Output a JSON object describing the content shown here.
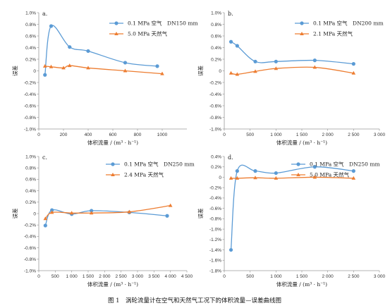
{
  "caption": "图 1　涡轮流量计在空气和天然气工况下的体积流量—误差曲线图",
  "colors": {
    "air": "#5b9bd5",
    "gas": "#ed7d31",
    "axis": "#999999",
    "text": "#222222"
  },
  "chart_data": [
    {
      "panel": "a.",
      "type": "line",
      "xlabel": "体积流量 / (m³ · h⁻¹)",
      "ylabel": "误差",
      "xlim": [
        0,
        1200
      ],
      "xticks": [
        0,
        200,
        400,
        600,
        800,
        1000
      ],
      "ylim": [
        -1.0,
        1.0
      ],
      "yticks": [
        -1.0,
        -0.8,
        -0.6,
        -0.4,
        -0.2,
        0,
        0.2,
        0.4,
        0.6,
        0.8,
        1.0
      ],
      "ytick_labels": [
        "-1.0%",
        "-0.8%",
        "-0.6%",
        "-0.4%",
        "-0.2%",
        "0",
        "0.2%",
        "0.4%",
        "0.6%",
        "0.8%",
        "1.0%"
      ],
      "legend_position": "top-right",
      "series": [
        {
          "name": "0.1 MPa 空气　DN150 mm",
          "marker": "circle",
          "color": "air",
          "x": [
            50,
            100,
            250,
            400,
            700,
            960
          ],
          "y": [
            -0.07,
            0.77,
            0.41,
            0.34,
            0.14,
            0.08
          ]
        },
        {
          "name": "5.0 MPa 天然气",
          "marker": "triangle",
          "color": "gas",
          "x": [
            50,
            100,
            200,
            250,
            400,
            700,
            1000
          ],
          "y": [
            0.08,
            0.07,
            0.05,
            0.09,
            0.05,
            0.0,
            -0.05
          ]
        }
      ]
    },
    {
      "panel": "b.",
      "type": "line",
      "xlabel": "体积流量 / (m³ · h⁻¹)",
      "ylabel": "误差",
      "xlim": [
        0,
        3000
      ],
      "xticks": [
        0,
        500,
        1000,
        1500,
        2000,
        2500,
        3000
      ],
      "xtick_labels": [
        "0",
        "500",
        "1 000",
        "1 500",
        "2 000",
        "2 500",
        "3 000"
      ],
      "ylim": [
        -1.0,
        1.0
      ],
      "yticks": [
        -1.0,
        -0.8,
        -0.6,
        -0.4,
        -0.2,
        0,
        0.2,
        0.4,
        0.6,
        0.8,
        1.0
      ],
      "ytick_labels": [
        "-1.0%",
        "-0.8%",
        "-0.6%",
        "-0.4%",
        "-0.2%",
        "0",
        "0.2%",
        "0.4%",
        "0.6%",
        "0.8%",
        "1.0%"
      ],
      "legend_position": "top-right",
      "series": [
        {
          "name": "0.1 MPa 空气　DN200 mm",
          "marker": "circle",
          "color": "air",
          "x": [
            130,
            250,
            600,
            1000,
            1750,
            2500
          ],
          "y": [
            0.5,
            0.43,
            0.16,
            0.16,
            0.18,
            0.12
          ]
        },
        {
          "name": "2.1 MPa 天然气",
          "marker": "triangle",
          "color": "gas",
          "x": [
            130,
            250,
            600,
            1000,
            1750,
            2500
          ],
          "y": [
            -0.04,
            -0.06,
            -0.01,
            0.04,
            0.06,
            -0.04
          ]
        }
      ]
    },
    {
      "panel": "c.",
      "type": "line",
      "xlabel": "体积流量 / (m³ · h⁻¹)",
      "ylabel": "误差",
      "xlim": [
        0,
        4500
      ],
      "xticks": [
        0,
        500,
        1000,
        1500,
        2000,
        2500,
        3000,
        3500,
        4000,
        4500
      ],
      "xtick_labels": [
        "0",
        "500",
        "1 000",
        "1 500",
        "2 000",
        "2 500",
        "3 000",
        "3 500",
        "4 000",
        "4 500"
      ],
      "ylim": [
        -1.0,
        1.0
      ],
      "yticks": [
        -1.0,
        -0.8,
        -0.6,
        -0.4,
        -0.2,
        0,
        0.2,
        0.4,
        0.6,
        0.8,
        1.0
      ],
      "ytick_labels": [
        "-1.0%",
        "-0.8%",
        "-0.6%",
        "-0.4%",
        "-0.2%",
        "0",
        "0.2%",
        "0.4%",
        "0.6%",
        "0.8%",
        "1.0%"
      ],
      "legend_position": "top-left",
      "series": [
        {
          "name": "0.1 MPa 空气　DN250 mm",
          "marker": "circle",
          "color": "air",
          "x": [
            200,
            400,
            1000,
            1600,
            2750,
            3900
          ],
          "y": [
            -0.21,
            0.06,
            -0.01,
            0.05,
            0.02,
            -0.04
          ]
        },
        {
          "name": "2.4 MPa 天然气",
          "marker": "triangle",
          "color": "gas",
          "x": [
            200,
            400,
            1000,
            1600,
            2750,
            4000
          ],
          "y": [
            -0.09,
            0.02,
            0.01,
            0.01,
            0.03,
            0.14
          ]
        }
      ]
    },
    {
      "panel": "d.",
      "type": "line",
      "xlabel": "体积流量 / (m³ · h⁻¹)",
      "ylabel": "误差",
      "xlim": [
        0,
        3000
      ],
      "xticks": [
        0,
        500,
        1000,
        1500,
        2000,
        2500,
        3000
      ],
      "xtick_labels": [
        "0",
        "500",
        "1 000",
        "1 500",
        "2 000",
        "2 500",
        "3 000"
      ],
      "ylim": [
        -1.8,
        0.4
      ],
      "yticks": [
        -1.8,
        -1.6,
        -1.4,
        -1.2,
        -1.0,
        -0.8,
        -0.6,
        -0.4,
        -0.2,
        0,
        0.2,
        0.4
      ],
      "ytick_labels": [
        "-1.8%",
        "-1.6%",
        "-1.4%",
        "-1.2%",
        "-1.0%",
        "-0.8%",
        "-0.6%",
        "-0.4%",
        "-0.2%",
        "0",
        "0.2%",
        "0.4%"
      ],
      "legend_position": "top-left",
      "series": [
        {
          "name": "0.1 MPa 空气　DN250 mm",
          "marker": "circle",
          "color": "air",
          "x": [
            130,
            250,
            600,
            1000,
            1750,
            2500
          ],
          "y": [
            -1.4,
            0.12,
            0.12,
            0.08,
            0.2,
            0.12
          ]
        },
        {
          "name": "5.0 MPa 天然气",
          "marker": "triangle",
          "color": "gas",
          "x": [
            130,
            250,
            600,
            1000,
            1750,
            2500
          ],
          "y": [
            -0.02,
            -0.02,
            -0.01,
            -0.02,
            0.0,
            -0.02
          ]
        }
      ]
    }
  ]
}
